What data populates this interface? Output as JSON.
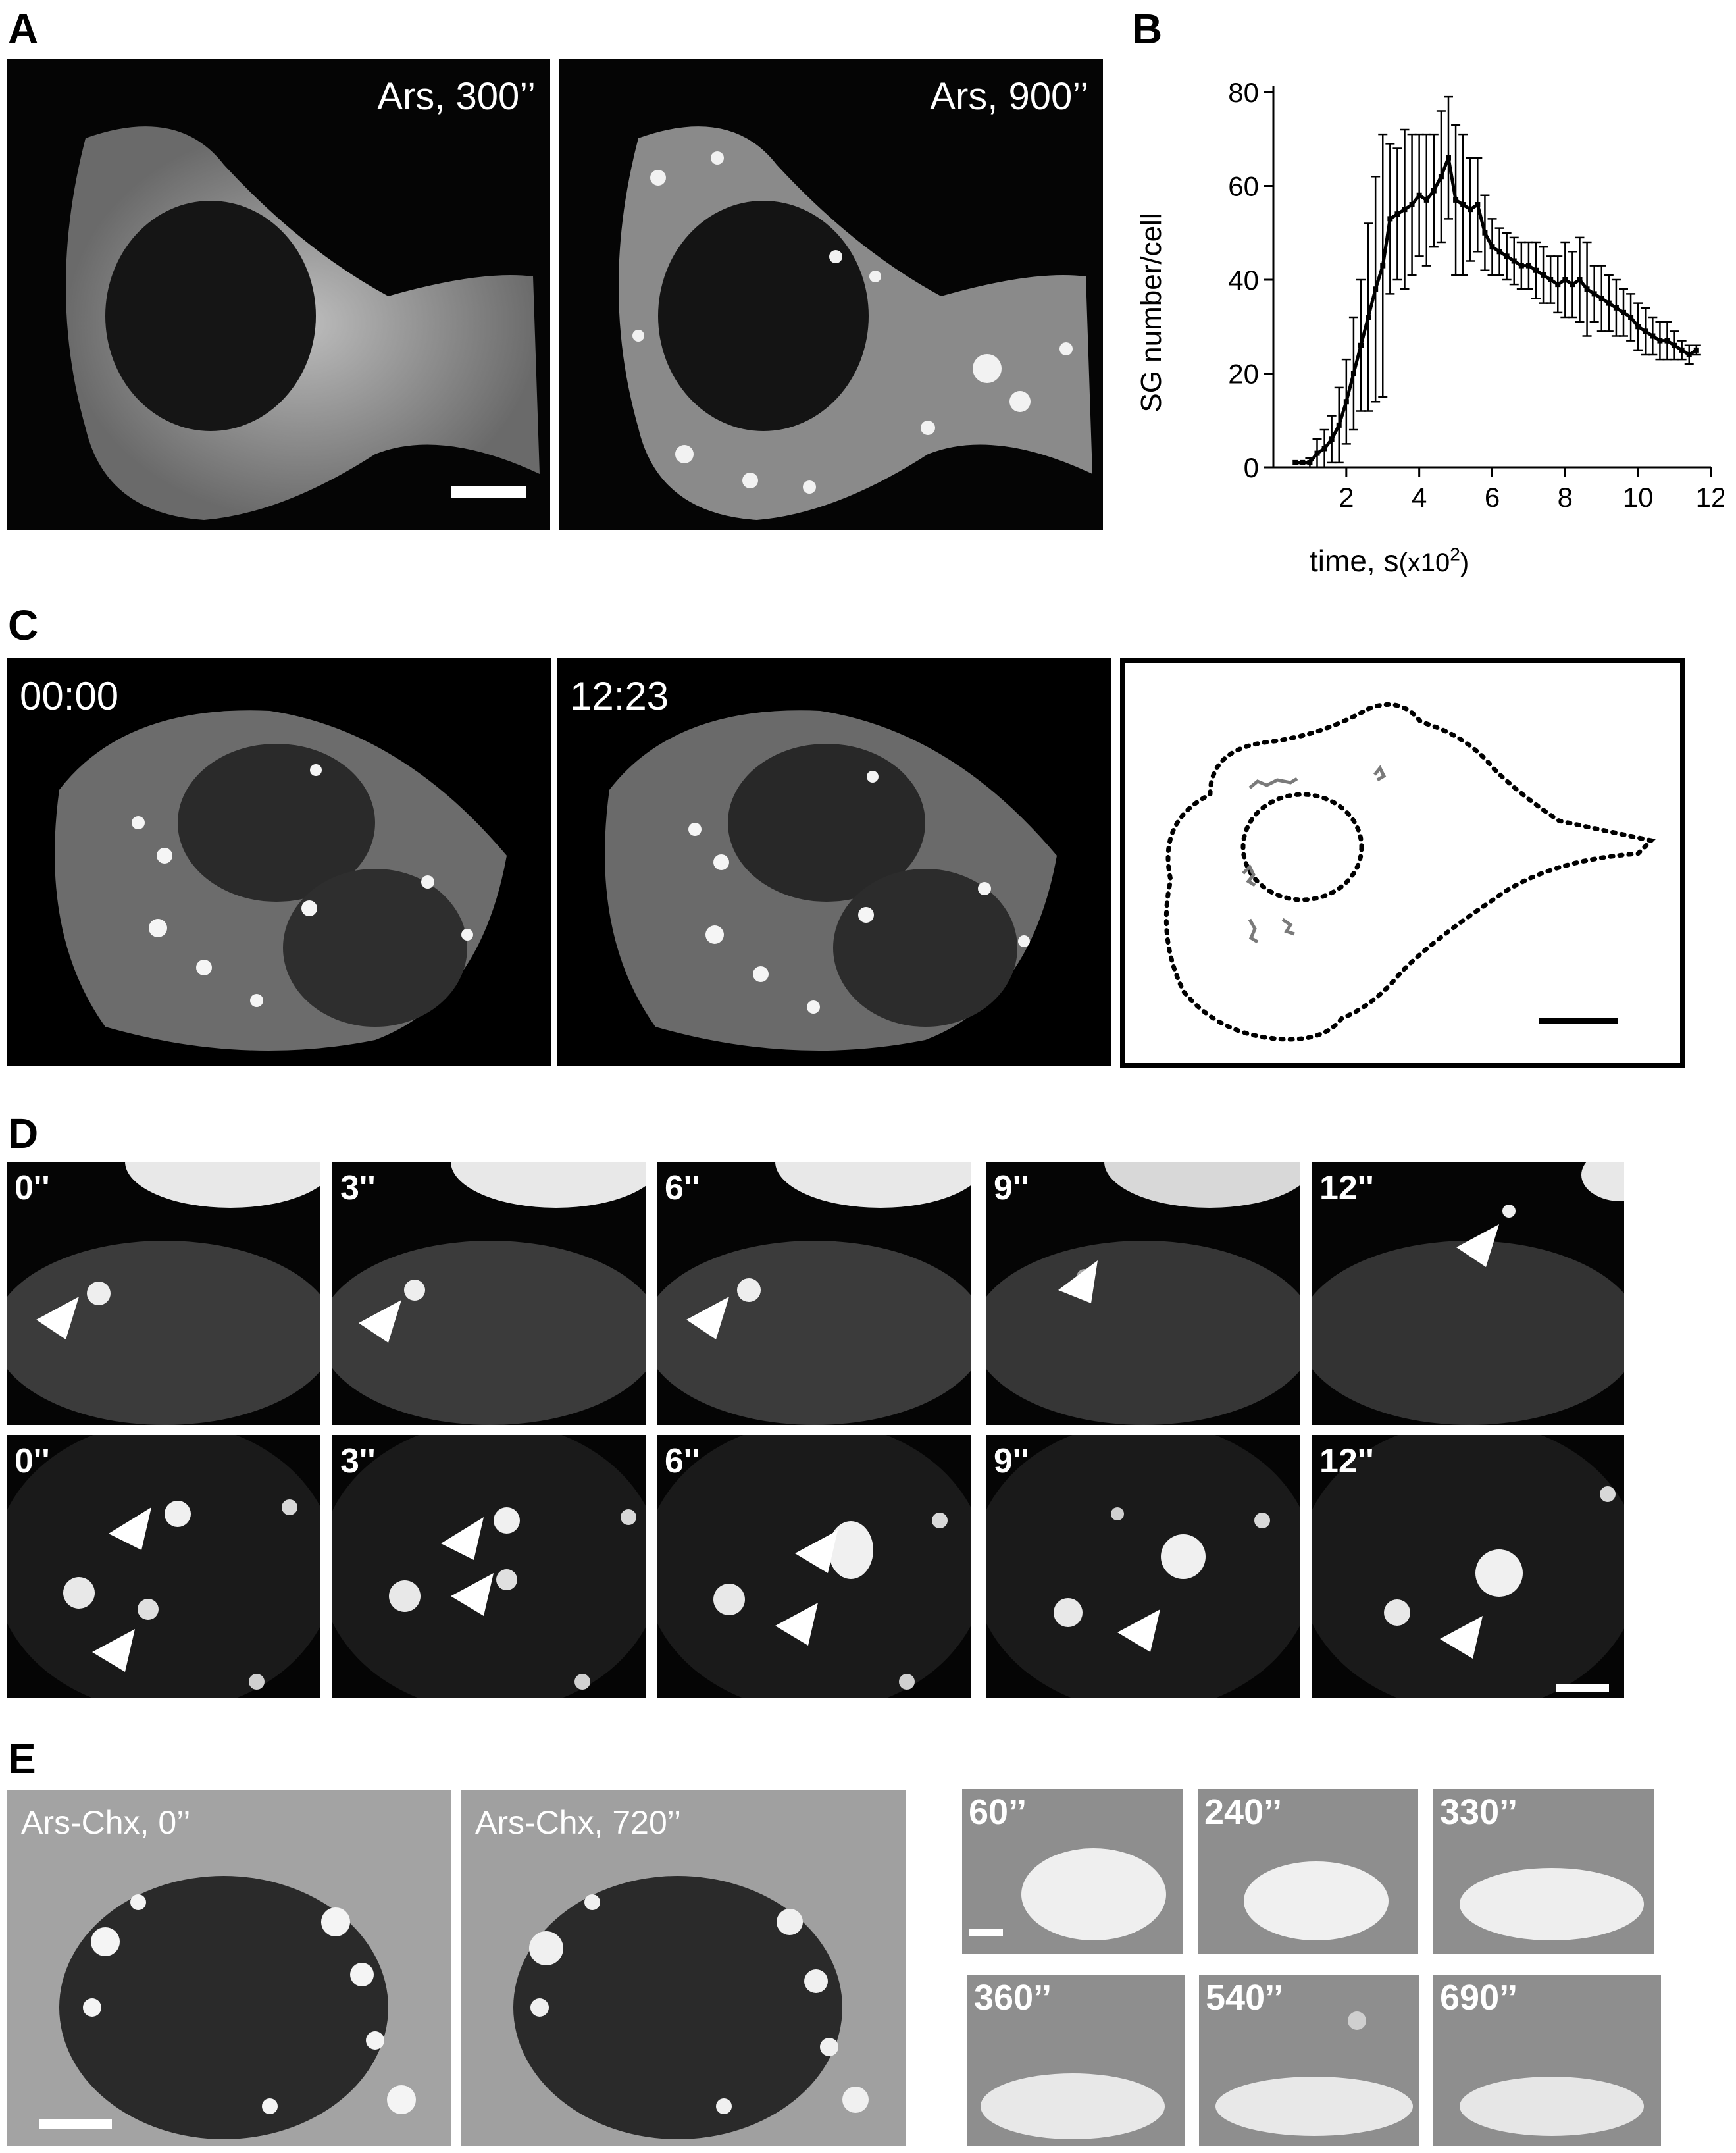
{
  "panels": {
    "A": {
      "label": "A",
      "images": [
        {
          "label": "Ars, 300’’"
        },
        {
          "label": "Ars, 900’’"
        }
      ]
    },
    "B": {
      "label": "B"
    },
    "C": {
      "label": "C",
      "images": [
        {
          "label": "00:00"
        },
        {
          "label": "12:23"
        }
      ]
    },
    "D": {
      "label": "D",
      "row1": [
        "0''",
        "3''",
        "6''",
        "9''",
        "12''"
      ],
      "row2": [
        "0''",
        "3''",
        "6''",
        "9''",
        "12''"
      ]
    },
    "E": {
      "label": "E",
      "images": [
        {
          "label": "Ars-Chx, 0’’"
        },
        {
          "label": "Ars-Chx, 720’’"
        }
      ],
      "insets": [
        "60’’",
        "240’’",
        "330’’",
        "360’’",
        "540’’",
        "690’’"
      ]
    }
  },
  "chart_data": {
    "type": "line",
    "xlabel": "time, s",
    "xlabel_unit": "(x10",
    "xlabel_exp": "2",
    "xlabel_close": ")",
    "ylabel": "SG number/cell",
    "xlim": [
      0,
      12
    ],
    "ylim": [
      0,
      80
    ],
    "xticks": [
      2,
      4,
      6,
      8,
      10,
      12
    ],
    "yticks": [
      0,
      20,
      40,
      60,
      80
    ],
    "series": [
      {
        "x": [
          0.6,
          0.8,
          1.0,
          1.2,
          1.4,
          1.6,
          1.8,
          2.0,
          2.2,
          2.4,
          2.6,
          2.8,
          3.0,
          3.2,
          3.4,
          3.6,
          3.8,
          4.0,
          4.2,
          4.4,
          4.6,
          4.8,
          5.0,
          5.2,
          5.4,
          5.6,
          5.8,
          6.0,
          6.2,
          6.4,
          6.6,
          6.8,
          7.0,
          7.2,
          7.4,
          7.6,
          7.8,
          8.0,
          8.2,
          8.4,
          8.6,
          8.8,
          9.0,
          9.2,
          9.4,
          9.6,
          9.8,
          10.0,
          10.2,
          10.4,
          10.6,
          10.8,
          11.0,
          11.2,
          11.4,
          11.6
        ],
        "y": [
          1,
          1,
          1,
          3,
          4,
          6,
          9,
          14,
          20,
          26,
          32,
          38,
          43,
          53,
          54,
          55,
          56,
          58,
          57,
          59,
          62,
          66,
          57,
          56,
          55,
          56,
          50,
          47,
          46,
          45,
          44,
          43,
          43,
          42,
          41,
          40,
          39,
          40,
          39,
          40,
          38,
          37,
          36,
          35,
          34,
          33,
          32,
          30,
          29,
          28,
          27,
          27,
          26,
          25,
          24,
          25
        ],
        "err": [
          0,
          0,
          1,
          3,
          4,
          5,
          8,
          9,
          12,
          14,
          20,
          24,
          28,
          16,
          14,
          17,
          15,
          13,
          14,
          12,
          14,
          13,
          16,
          15,
          11,
          10,
          8,
          6,
          5,
          5,
          5,
          5,
          5,
          6,
          6,
          5,
          6,
          8,
          7,
          9,
          10,
          6,
          7,
          6,
          6,
          5,
          5,
          5,
          5,
          4,
          4,
          4,
          3,
          2,
          2,
          1
        ]
      }
    ]
  }
}
